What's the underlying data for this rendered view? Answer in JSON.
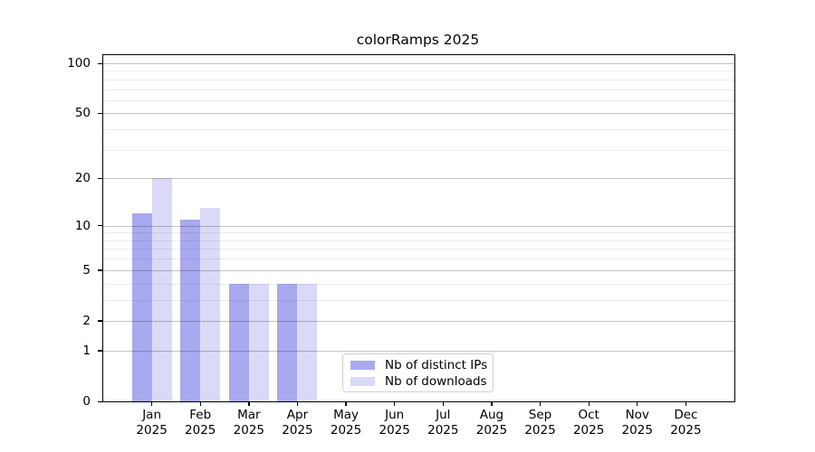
{
  "chart_data": {
    "type": "bar",
    "title": "colorRamps 2025",
    "categories": [
      "Jan",
      "Feb",
      "Mar",
      "Apr",
      "May",
      "Jun",
      "Jul",
      "Aug",
      "Sep",
      "Oct",
      "Nov",
      "Dec"
    ],
    "year_label": "2025",
    "series": [
      {
        "name": "Nb of distinct IPs",
        "color": "#a9a9f0",
        "values": [
          12,
          11,
          4,
          4,
          0,
          0,
          0,
          0,
          0,
          0,
          0,
          0
        ]
      },
      {
        "name": "Nb of downloads",
        "color": "#dadaf8",
        "values": [
          20,
          13,
          4,
          4,
          0,
          0,
          0,
          0,
          0,
          0,
          0,
          0
        ]
      }
    ],
    "scale": "log1p",
    "ylim": [
      0,
      100
    ],
    "y_ticks": [
      0,
      1,
      2,
      5,
      10,
      20,
      50,
      100
    ],
    "y_minor_ticks": [
      3,
      4,
      6,
      7,
      8,
      9,
      30,
      40,
      60,
      70,
      80,
      90
    ],
    "grid": "on",
    "grid_above_bars": true,
    "legend_position": "lower center",
    "xlabel": "",
    "ylabel": ""
  },
  "colors": {
    "spine": "#000000",
    "major_grid": "#c3c3c3",
    "minor_grid": "#ececec",
    "legend_border": "#d0d0d0",
    "background": "#ffffff"
  }
}
